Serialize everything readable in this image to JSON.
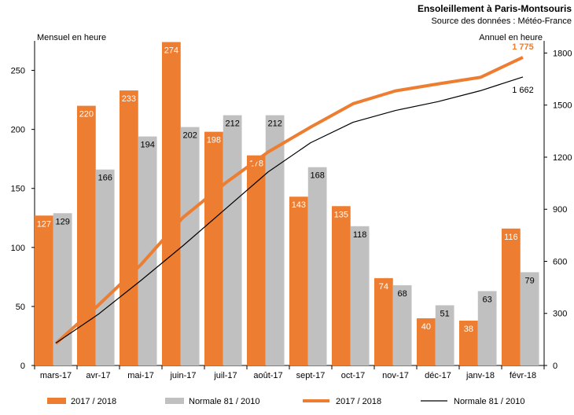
{
  "chart_data": {
    "type": "bar",
    "title": "Ensoleillement à Paris-Montsouris",
    "subtitle": "Source des données : Météo-France",
    "ylabel_left": "Mensuel en heure",
    "ylabel_right": "Annuel en heure",
    "categories": [
      "mars-17",
      "avr-17",
      "mai-17",
      "juin-17",
      "juil-17",
      "août-17",
      "sept-17",
      "oct-17",
      "nov-17",
      "déc-17",
      "janv-18",
      "févr-18"
    ],
    "ylim_left": [
      0,
      275
    ],
    "yticks_left": [
      "0",
      "50",
      "100",
      "150",
      "200",
      "250"
    ],
    "ylim_right": [
      0,
      1870
    ],
    "yticks_right": [
      "0",
      "300",
      "600",
      "900",
      "1200",
      "1500",
      "1800"
    ],
    "bar_series": [
      {
        "name": "2017 / 2018",
        "color": "#ED7D31",
        "label_color": "#ffffff",
        "values": [
          127,
          220,
          233,
          274,
          198,
          178,
          143,
          135,
          74,
          40,
          38,
          116
        ],
        "labels": [
          "127",
          "220",
          "233",
          "274",
          "198",
          "178",
          "143",
          "135",
          "74",
          "40",
          "38",
          "116"
        ]
      },
      {
        "name": "Normale 81 / 2010",
        "color": "#C0C0C0",
        "label_color": "#000000",
        "values": [
          129,
          166,
          194,
          202,
          212,
          212,
          168,
          118,
          68,
          51,
          63,
          79
        ],
        "labels": [
          "129",
          "166",
          "194",
          "202",
          "212",
          "212",
          "168",
          "118",
          "68",
          "51",
          "63",
          "79"
        ]
      }
    ],
    "line_series": [
      {
        "name": "2017 / 2018",
        "color": "#ED7D31",
        "axis": "right",
        "values": [
          127,
          347,
          580,
          854,
          1052,
          1230,
          1373,
          1508,
          1582,
          1622,
          1660,
          1775
        ],
        "end_label": "1 775"
      },
      {
        "name": "Normale 81 / 2010",
        "color": "#000000",
        "axis": "right",
        "values": [
          129,
          295,
          489,
          691,
          903,
          1115,
          1283,
          1401,
          1469,
          1520,
          1583,
          1662
        ],
        "end_label": "1 662"
      }
    ],
    "legend": [
      "2017 / 2018",
      "Normale 81 / 2010",
      "2017 / 2018",
      "Normale 81 / 2010"
    ]
  }
}
